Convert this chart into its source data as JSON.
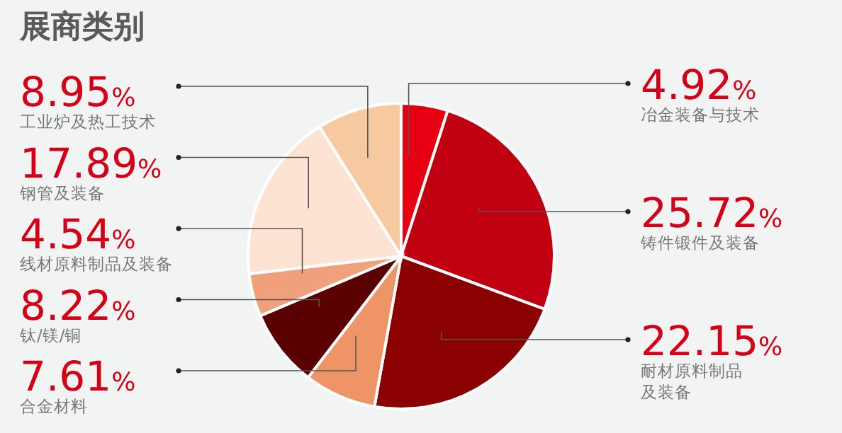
{
  "chart_data": {
    "type": "pie",
    "title": "展商类别",
    "categories": [
      "冶金装备与技术",
      "铸件锻件及装备",
      "耐材原料制品及装备",
      "合金材料",
      "钛/镁/铜",
      "线材原料制品及装备",
      "钢管及装备",
      "工业炉及热工技术"
    ],
    "values": [
      4.92,
      25.72,
      22.15,
      7.61,
      8.22,
      4.54,
      17.89,
      8.95
    ],
    "value_labels": [
      "4.92%",
      "25.72%",
      "22.15%",
      "7.61%",
      "8.22%",
      "4.54%",
      "17.89%",
      "8.95%"
    ],
    "colors": [
      "#e60012",
      "#c00010",
      "#8b0000",
      "#ee9466",
      "#5a0000",
      "#f0a07a",
      "#fce3d2",
      "#f7c9a0"
    ],
    "legend": false
  }
}
